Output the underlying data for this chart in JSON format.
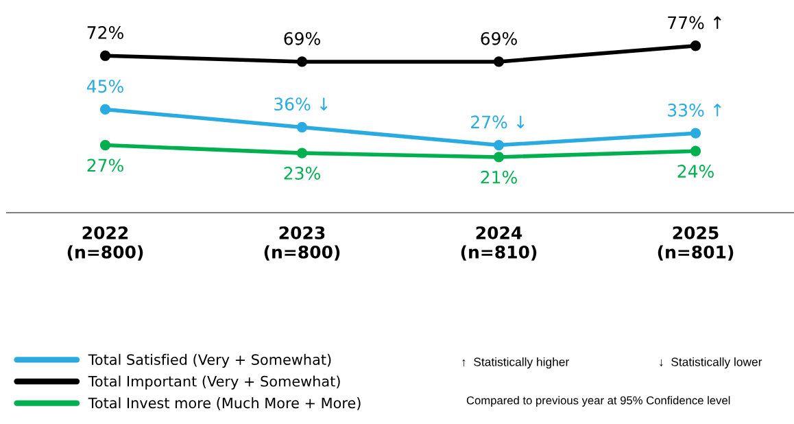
{
  "chart_data": {
    "type": "line",
    "categories": [
      "2022\n(n=800)",
      "2023\n(n=800)",
      "2024\n(n=810)",
      "2025\n(n=801)"
    ],
    "series": [
      {
        "name": "Total Satisfied (Very + Somewhat)",
        "color": "#29abe2",
        "values": [
          45,
          36,
          27,
          33
        ],
        "value_labels": [
          "45%",
          "36% ↓",
          "27% ↓",
          "33% ↑"
        ]
      },
      {
        "name": "Total Important (Very + Somewhat)",
        "color": "#000000",
        "values": [
          72,
          69,
          69,
          77
        ],
        "value_labels": [
          "72%",
          "69%",
          "69%",
          "77% ↑"
        ]
      },
      {
        "name": "Total Invest more (Much More + More)",
        "color": "#00b050",
        "values": [
          27,
          23,
          21,
          24
        ],
        "value_labels": [
          "27%",
          "23%",
          "21%",
          "24%"
        ]
      }
    ],
    "tick_labels": "x",
    "marker": "circle",
    "line_style": "solid",
    "grid": false,
    "legend": "bottom left",
    "annotations": [
      "↑  Statistically higher",
      "↓  Statistically lower",
      "Compared to previous year at 95% Confidence level"
    ]
  }
}
